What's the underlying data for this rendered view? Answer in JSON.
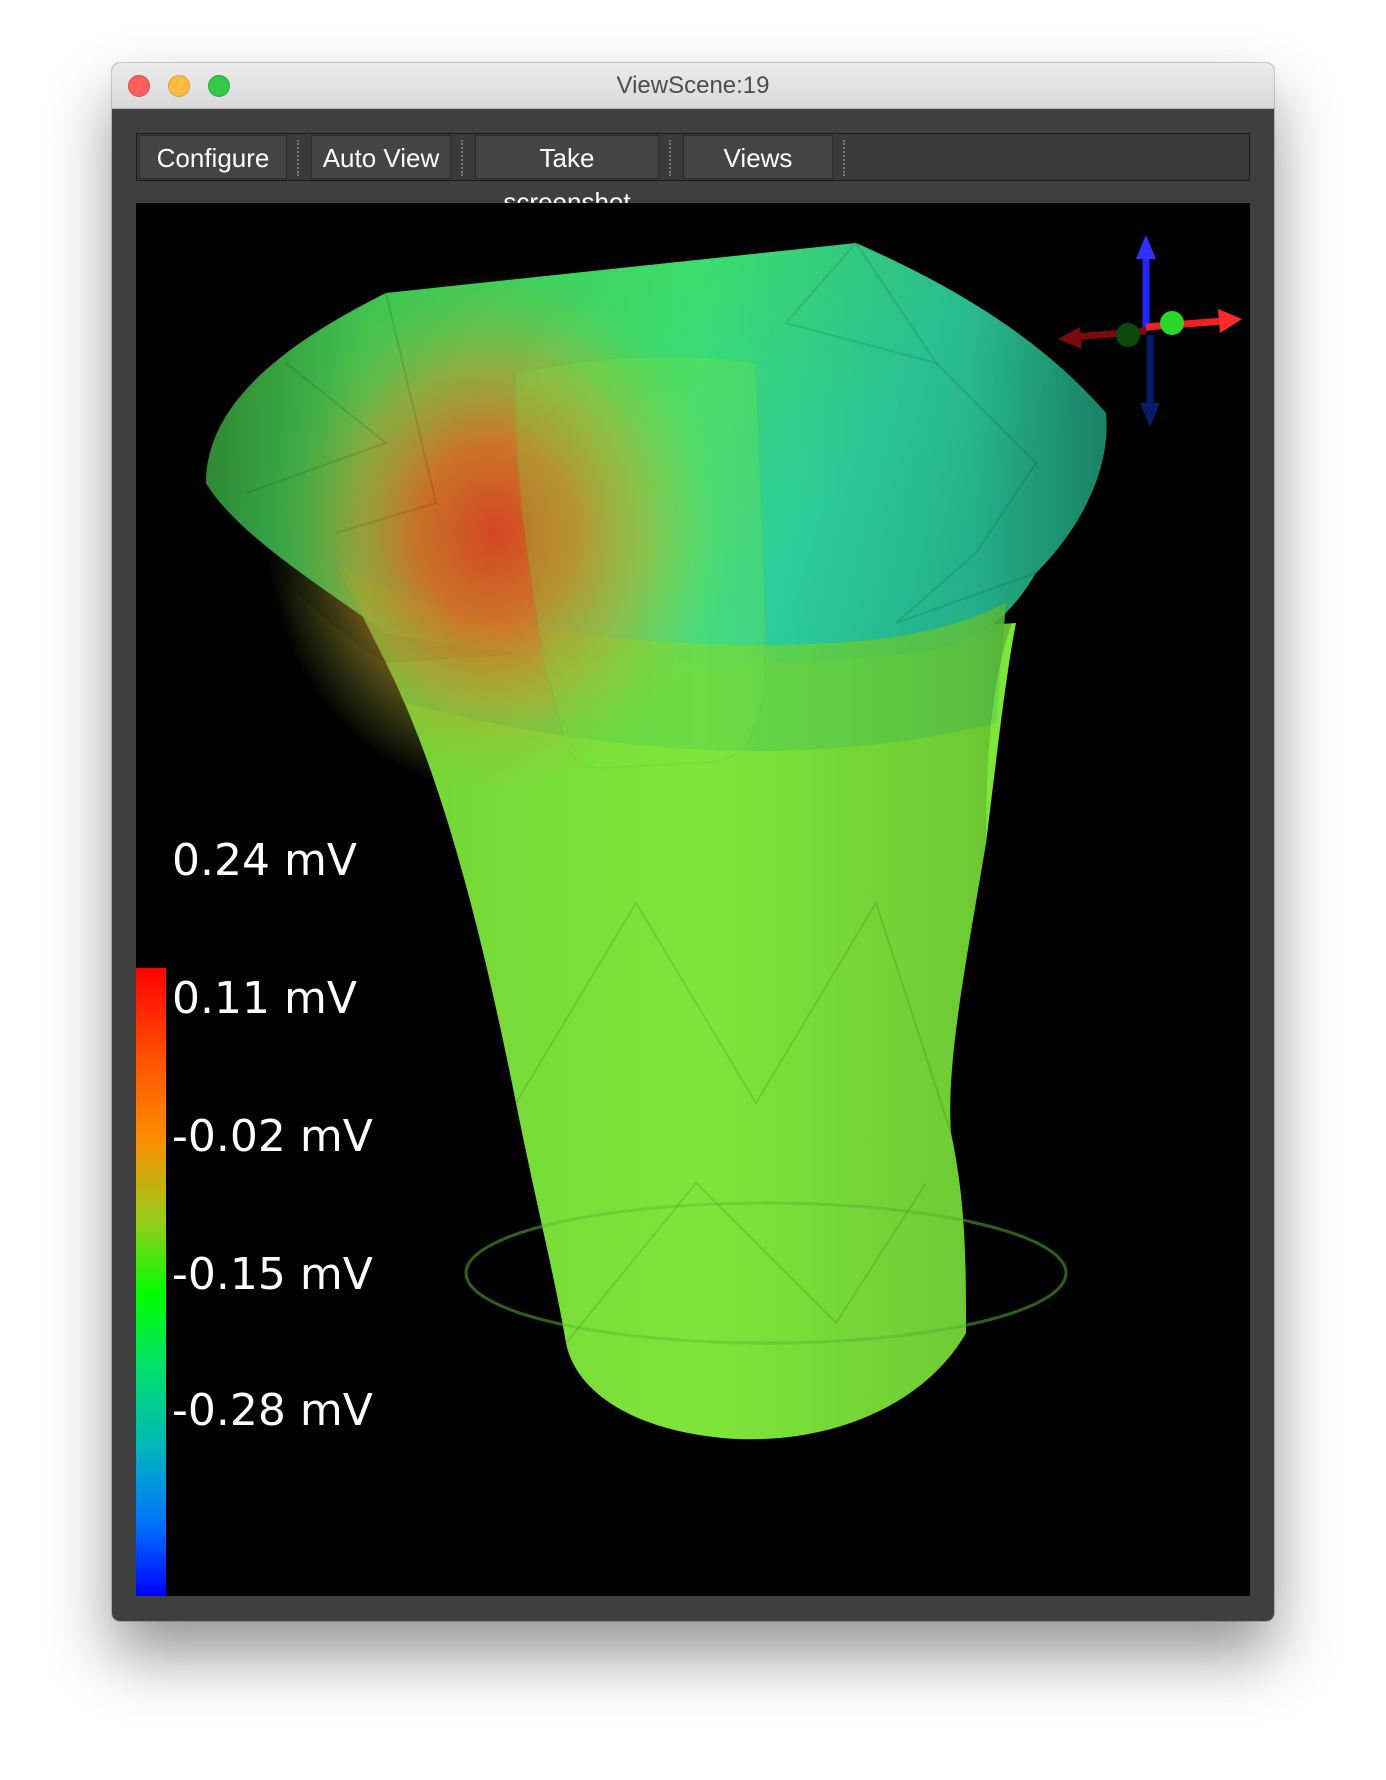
{
  "window": {
    "title": "ViewScene:19"
  },
  "toolbar": {
    "configure_label": "Configure",
    "auto_view_label": "Auto View",
    "screenshot_label": "Take screenshot",
    "views_label": "Views"
  },
  "colorbar": {
    "labels": [
      "0.24 mV",
      "0.11 mV",
      "-0.02 mV",
      "-0.15 mV",
      "-0.28 mV"
    ],
    "max_color": "#ff0000",
    "mid_color": "#00ff00",
    "min_color": "#0000ff"
  },
  "axes_widget": {
    "x_color": "#ff2020",
    "y_color": "#20cc20",
    "z_color": "#2020ff"
  }
}
